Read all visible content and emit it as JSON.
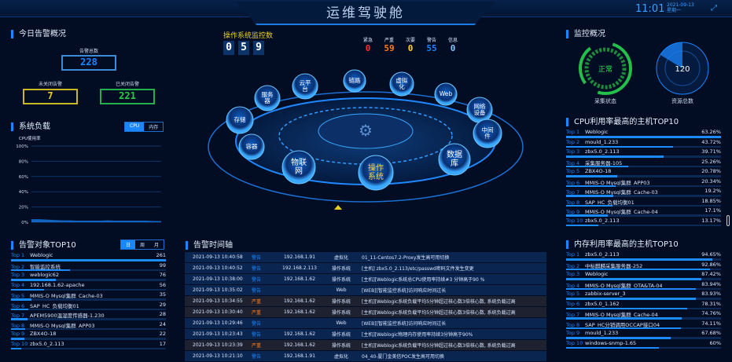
{
  "header": {
    "title": "运维驾驶舱",
    "time": "11:01",
    "date": "2021-09-13",
    "weekday": "星期一",
    "fullscreen_icon": "expand-icon"
  },
  "alarm_overview": {
    "title": "今日告警概况",
    "total_label": "告警总数",
    "total": "228",
    "open_label": "未关闭告警",
    "open": "7",
    "closed_label": "已关闭告警",
    "closed": "221"
  },
  "load": {
    "title": "系统负载",
    "tabs": [
      "CPU",
      "内存"
    ],
    "active_tab": "CPU",
    "ylabel": "CPU使用率"
  },
  "chart_data": {
    "type": "area",
    "ylabel": "CPU使用率",
    "ylim": [
      0,
      100
    ],
    "yticks": [
      "100%",
      "80%",
      "60%",
      "40%",
      "20%",
      "0%"
    ],
    "values": [
      4,
      4,
      3.5,
      3,
      2.5,
      2.5,
      2,
      2,
      2,
      2,
      2.5,
      2,
      2,
      2,
      2,
      2,
      1.5,
      1.5
    ],
    "color": "#1a86ff",
    "grid": true
  },
  "os_monitor": {
    "title": "操作系统监控数",
    "digits": [
      "0",
      "5",
      "9"
    ],
    "levels": [
      {
        "label": "紧急",
        "value": "0",
        "color": "#ff2a2a"
      },
      {
        "label": "严重",
        "value": "59",
        "color": "#ff7a1a"
      },
      {
        "label": "次要",
        "value": "0",
        "color": "#ffd21a"
      },
      {
        "label": "警告",
        "value": "55",
        "color": "#1a86ff"
      },
      {
        "label": "信息",
        "value": "0",
        "color": "#7fc4ff"
      }
    ]
  },
  "center": {
    "nodes": [
      "存储",
      "服务器",
      "云平台",
      "链路",
      "虚拟化",
      "Web",
      "网络设备",
      "中间件",
      "数据库",
      "操作系统",
      "物联网",
      "容器"
    ]
  },
  "monitor": {
    "title": "监控概况",
    "status_value": "正常",
    "status_label": "采集状态",
    "resource_value": "120",
    "resource_label": "资源总数"
  },
  "top_objects": {
    "title": "告警对象TOP10",
    "tabs": [
      "日",
      "周",
      "月"
    ],
    "active_tab": "日",
    "max": 261,
    "items": [
      {
        "rank": "Top 1",
        "name": "Weblogic",
        "value": 261
      },
      {
        "rank": "Top 2",
        "name": "智能监控系统",
        "value": 99
      },
      {
        "rank": "Top 3",
        "name": "weblogic62",
        "value": 76
      },
      {
        "rank": "Top 4",
        "name": "192.168.1.62-apache",
        "value": 56
      },
      {
        "rank": "Top 5",
        "name": "MMIS-O Mysql集群_Cache-03",
        "value": 35
      },
      {
        "rank": "Top 6",
        "name": "SAP_HC_负载均衡01",
        "value": 29
      },
      {
        "rank": "Top 7",
        "name": "APEM5900温湿度传感器-1.230",
        "value": 28
      },
      {
        "rank": "Top 8",
        "name": "MMIS-O Mysql集群_APP03",
        "value": 24
      },
      {
        "rank": "Top 9",
        "name": "ZBX4O-18",
        "value": 22
      },
      {
        "rank": "Top 10",
        "name": "zbx5.0_2.113",
        "value": 17
      }
    ]
  },
  "timeline": {
    "title": "告警时间轴",
    "rows": [
      {
        "time": "2021-09-13 10:40:58",
        "level": "警告",
        "ip": "192.168.1.91",
        "type": "虚拟化",
        "msg": "01_11-Centos7.2-Proxy发生高可用切换"
      },
      {
        "time": "2021-09-13 10:40:52",
        "level": "警告",
        "ip": "192.168.2.113",
        "type": "操作系统",
        "msg": "[主机] zbx5.0_2.113/etc/passwd密码文件发生变更"
      },
      {
        "time": "2021-09-13 10:38:00",
        "level": "警告",
        "ip": "192.168.1.62",
        "type": "操作系统",
        "msg": "[主机][Weblogic系统总CPU使用率持续#3 分钟高于90 %"
      },
      {
        "time": "2021-09-13 10:35:02",
        "level": "警告",
        "ip": "",
        "type": "Web",
        "msg": "[WEB][智能监控系统]访问响应时间过长"
      },
      {
        "time": "2021-09-13 10:34:55",
        "level": "严重",
        "ip": "192.168.1.62",
        "type": "操作系统",
        "msg": "[主机][Weblogic系统负载平均5分钟超过核心数3倍核心数, 系统负载过高"
      },
      {
        "time": "2021-09-13 10:30:40",
        "level": "严重",
        "ip": "192.168.1.62",
        "type": "操作系统",
        "msg": "[主机][Weblogic系统负载平均5分钟超过核心数3倍核心数, 系统负载过高"
      },
      {
        "time": "2021-09-13 10:29:46",
        "level": "警告",
        "ip": "",
        "type": "Web",
        "msg": "[WEB][智能监控系统]访问响应时间过长"
      },
      {
        "time": "2021-09-13 10:23:43",
        "level": "警告",
        "ip": "192.168.1.62",
        "type": "操作系统",
        "msg": "[主机][Weblogic物理内存使用率持续3分钟高于90%"
      },
      {
        "time": "2021-09-13 10:23:39",
        "level": "严重",
        "ip": "192.168.1.62",
        "type": "操作系统",
        "msg": "[主机][Weblogic系统负载平均5分钟超过核心数3倍核心数, 系统负载过高"
      },
      {
        "time": "2021-09-13 10:21:10",
        "level": "警告",
        "ip": "192.168.1.91",
        "type": "虚拟化",
        "msg": "04_40-厦门金美信POC发生高可用切换"
      }
    ]
  },
  "cpu_top": {
    "title": "CPU利用率最高的主机TOP10",
    "items": [
      {
        "rank": "Top 1",
        "name": "Weblogic",
        "value": "63.26%",
        "pct": 63.26
      },
      {
        "rank": "Top 2",
        "name": "mould_1.233",
        "value": "43.72%",
        "pct": 43.72
      },
      {
        "rank": "Top 3",
        "name": "zbx5.0_2.113",
        "value": "39.71%",
        "pct": 39.71
      },
      {
        "rank": "Top 4",
        "name": "采集服务器-105",
        "value": "25.26%",
        "pct": 25.26
      },
      {
        "rank": "Top 5",
        "name": "ZBX4O-18",
        "value": "20.78%",
        "pct": 20.78
      },
      {
        "rank": "Top 6",
        "name": "MMIS-O Mysql集群_APP03",
        "value": "20.34%",
        "pct": 20.34
      },
      {
        "rank": "Top 7",
        "name": "MMIS-O Mysql集群_Cache-03",
        "value": "19.2%",
        "pct": 19.2
      },
      {
        "rank": "Top 8",
        "name": "SAP_HC_负载均衡01",
        "value": "18.85%",
        "pct": 18.85
      },
      {
        "rank": "Top 9",
        "name": "MMIS-O Mysql集群_Cache-04",
        "value": "17.1%",
        "pct": 17.1
      },
      {
        "rank": "Top 10",
        "name": "zbx5.0_2.113",
        "value": "13.17%",
        "pct": 13.17
      }
    ]
  },
  "mem_top": {
    "title": "内存利用率最高的主机TOP10",
    "items": [
      {
        "rank": "Top 1",
        "name": "zbx5.0_2.113",
        "value": "94.65%",
        "pct": 94.65
      },
      {
        "rank": "Top 2",
        "name": "中标麒麟采集服务器-252",
        "value": "92.86%",
        "pct": 92.86
      },
      {
        "rank": "Top 3",
        "name": "Weblogic",
        "value": "87.42%",
        "pct": 87.42
      },
      {
        "rank": "Top 4",
        "name": "MMIS-O Mysql集群_OTA&TA-04",
        "value": "83.94%",
        "pct": 83.94
      },
      {
        "rank": "Top 5",
        "name": "zabbix-server_3",
        "value": "83.93%",
        "pct": 83.93
      },
      {
        "rank": "Top 6",
        "name": "zbx5.0_1.162",
        "value": "78.31%",
        "pct": 78.31
      },
      {
        "rank": "Top 7",
        "name": "MMIS-O Mysql集群_Cache-04",
        "value": "74.76%",
        "pct": 74.76
      },
      {
        "rank": "Top 8",
        "name": "SAP_HC分销调用OCCAP接口04",
        "value": "74.11%",
        "pct": 74.11
      },
      {
        "rank": "Top 9",
        "name": "mould_1.233",
        "value": "67.68%",
        "pct": 67.68
      },
      {
        "rank": "Top 10",
        "name": "windows-snmp-1.65",
        "value": "60%",
        "pct": 60
      }
    ]
  }
}
